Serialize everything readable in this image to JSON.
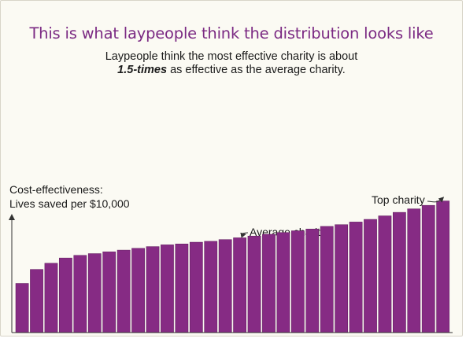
{
  "title": "This is what laypeople think the distribution looks like",
  "subtitle": {
    "line1": "Laypeople think the most effective charity is about",
    "line2_emph": "1.5-times",
    "line2_rest": " as effective as the average charity."
  },
  "ylabel": {
    "line1": "Cost-effectiveness:",
    "line2": "Lives saved per $10,000"
  },
  "annotations": {
    "average": "Average charity",
    "top": "Top charity"
  },
  "colors": {
    "bar": "#862b84",
    "bar_edge": "#5e1a5c",
    "title": "#7b2a83",
    "axis": "#333333",
    "background": "#fbfaf3"
  },
  "chart_data": {
    "type": "bar",
    "title": "This is what laypeople think the distribution looks like",
    "xlabel": "",
    "ylabel": "Cost-effectiveness: Lives saved per $10,000",
    "ylim": [
      0,
      155
    ],
    "grid": false,
    "legend": "none",
    "values": [
      56,
      72,
      79,
      85,
      88,
      90,
      92,
      94,
      96,
      98,
      100,
      101,
      103,
      104,
      106,
      108,
      110,
      112,
      114,
      116,
      118,
      121,
      123,
      126,
      129,
      133,
      137,
      141,
      145,
      150
    ],
    "annotated_bars": {
      "average": 16,
      "top": 29
    }
  }
}
